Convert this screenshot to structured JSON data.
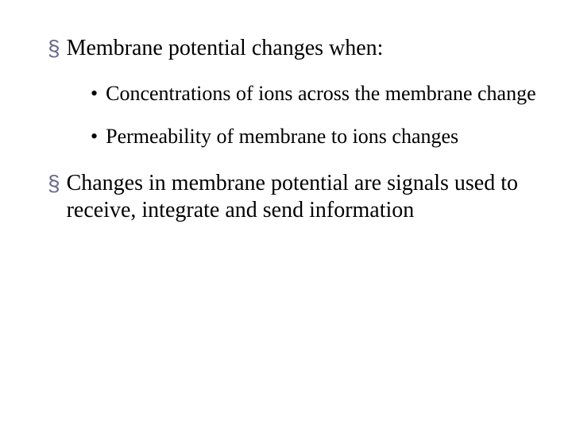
{
  "slide": {
    "background_color": "#ffffff",
    "text_color": "#000000",
    "font_family": "Times New Roman",
    "level1_fontsize": 28,
    "level2_fontsize": 26,
    "level1_bullet_glyph": "§",
    "level1_bullet_color": "#6a6a85",
    "level2_bullet_glyph": "•",
    "level2_bullet_color": "#000000",
    "items": [
      {
        "text": "Membrane potential changes when:",
        "children": [
          {
            "text": "Concentrations of ions across the membrane change"
          },
          {
            "text": "Permeability of membrane to ions changes"
          }
        ]
      },
      {
        "text": "Changes in membrane potential are signals used to receive, integrate and send information",
        "children": []
      }
    ]
  }
}
